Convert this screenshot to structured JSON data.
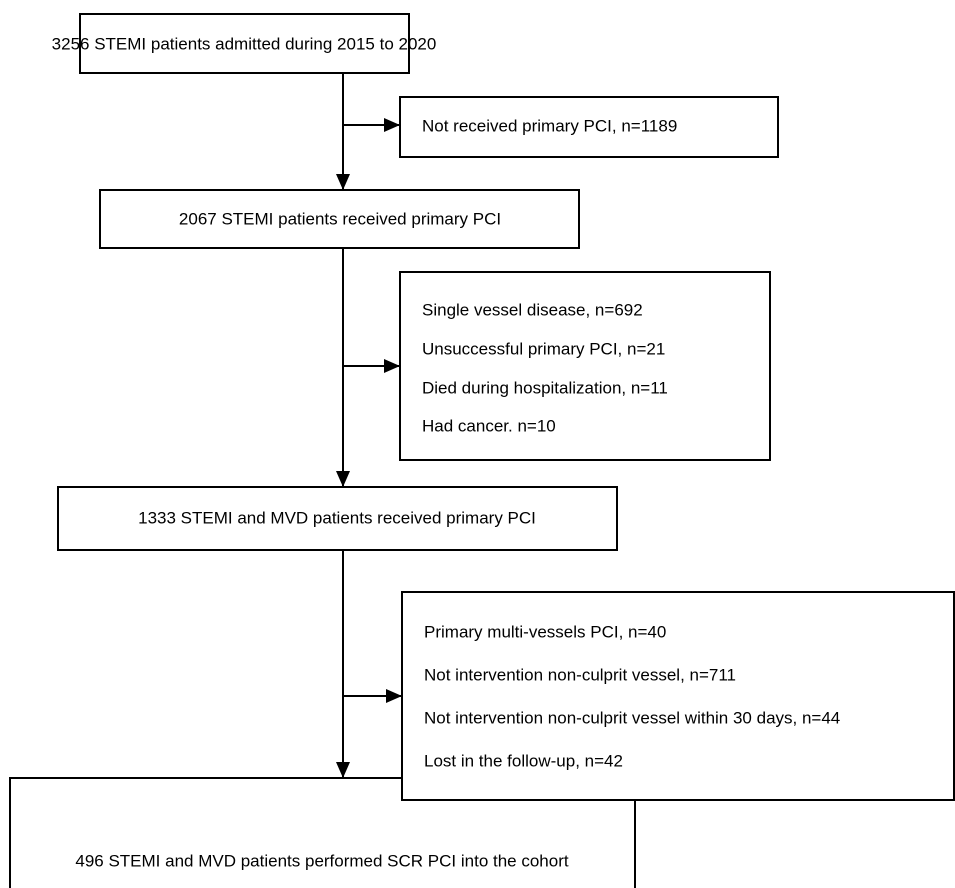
{
  "nodes": [
    {
      "label": "3256 STEMI patients admitted during 2015 to 2020"
    },
    {
      "label": "2067 STEMI patients received primary PCI"
    },
    {
      "label": "1333 STEMI and MVD patients received primary PCI"
    },
    {
      "label": "496 STEMI and MVD patients performed SCR PCI into the cohort"
    }
  ],
  "exclusions": [
    {
      "items": [
        "Not received primary PCI, n=1189"
      ]
    },
    {
      "items": [
        "Single vessel disease, n=692",
        "Unsuccessful primary PCI, n=21",
        "Died during hospitalization, n=11",
        "Had cancer. n=10"
      ]
    },
    {
      "items": [
        "Primary multi-vessels PCI, n=40",
        "Not intervention non-culprit vessel, n=711",
        "Not intervention non-culprit vessel within 30 days, n=44",
        "Lost in the follow-up, n=42"
      ]
    }
  ]
}
